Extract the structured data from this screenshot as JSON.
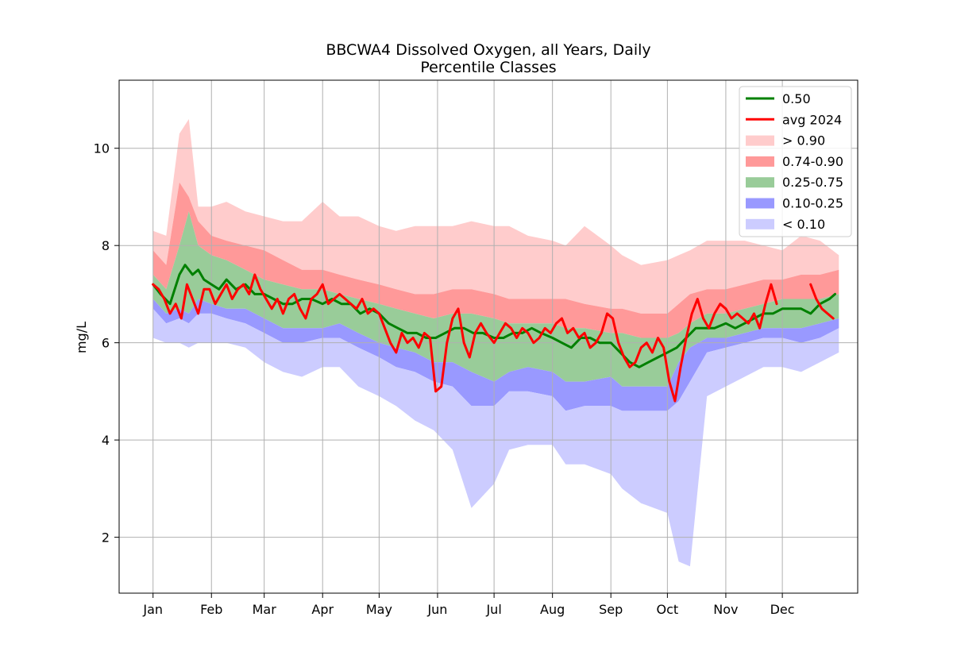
{
  "chart_data": {
    "type": "area",
    "title": "BBCWA4 Dissolved Oxygen, all Years, Daily",
    "subtitle": "Percentile Classes",
    "xlabel": "",
    "ylabel": "mg/L",
    "xlim": [
      -17,
      375
    ],
    "ylim": [
      0.85,
      11.4
    ],
    "grid": true,
    "legend_position": "top-right",
    "x_ticks": [
      {
        "label": "Jan",
        "day": 1
      },
      {
        "label": "Feb",
        "day": 32
      },
      {
        "label": "Mar",
        "day": 60
      },
      {
        "label": "Apr",
        "day": 91
      },
      {
        "label": "May",
        "day": 121
      },
      {
        "label": "Jun",
        "day": 152
      },
      {
        "label": "Jul",
        "day": 182
      },
      {
        "label": "Aug",
        "day": 213
      },
      {
        "label": "Sep",
        "day": 244
      },
      {
        "label": "Oct",
        "day": 274
      },
      {
        "label": "Nov",
        "day": 305
      },
      {
        "label": "Dec",
        "day": 335
      }
    ],
    "y_ticks": [
      2,
      4,
      6,
      8,
      10
    ],
    "colors": {
      "p50": "#008000",
      "avg": "#ff0000",
      "above_90": "#ffcccc",
      "p74_90": "#ff9999",
      "p25_75": "#99cc99",
      "p10_25": "#9999ff",
      "below_10": "#ccccff"
    },
    "days": [
      1,
      8,
      15,
      20,
      25,
      32,
      40,
      50,
      60,
      70,
      80,
      91,
      100,
      110,
      121,
      130,
      140,
      150,
      160,
      170,
      182,
      190,
      200,
      213,
      220,
      230,
      244,
      250,
      260,
      274,
      280,
      286,
      295,
      305,
      315,
      325,
      335,
      345,
      355,
      365
    ],
    "min": [
      6.1,
      6.0,
      6.0,
      5.9,
      6.0,
      6.0,
      6.0,
      5.9,
      5.6,
      5.4,
      5.3,
      5.5,
      5.5,
      5.1,
      4.9,
      4.7,
      4.4,
      4.2,
      3.8,
      2.6,
      3.1,
      3.8,
      3.9,
      3.9,
      3.5,
      3.5,
      3.3,
      3.0,
      2.7,
      2.5,
      1.5,
      1.4,
      4.9,
      5.1,
      5.3,
      5.5,
      5.5,
      5.4,
      5.6,
      5.8
    ],
    "p10": [
      6.7,
      6.4,
      6.5,
      6.4,
      6.6,
      6.6,
      6.5,
      6.4,
      6.2,
      6.0,
      6.0,
      6.1,
      6.1,
      5.9,
      5.7,
      5.5,
      5.4,
      5.2,
      5.1,
      4.7,
      4.7,
      5.0,
      5.0,
      4.9,
      4.6,
      4.7,
      4.7,
      4.6,
      4.6,
      4.6,
      4.8,
      5.2,
      5.8,
      5.9,
      6.0,
      6.1,
      6.1,
      6.0,
      6.1,
      6.3
    ],
    "p25": [
      6.9,
      6.6,
      6.7,
      6.6,
      6.9,
      6.8,
      6.7,
      6.7,
      6.5,
      6.3,
      6.3,
      6.3,
      6.4,
      6.2,
      6.0,
      5.9,
      5.8,
      5.6,
      5.6,
      5.4,
      5.2,
      5.4,
      5.5,
      5.4,
      5.2,
      5.2,
      5.3,
      5.1,
      5.1,
      5.1,
      5.6,
      5.9,
      6.1,
      6.1,
      6.2,
      6.3,
      6.3,
      6.3,
      6.4,
      6.5
    ],
    "p75": [
      7.4,
      7.1,
      8.0,
      8.7,
      8.0,
      7.8,
      7.7,
      7.5,
      7.3,
      7.2,
      7.1,
      7.1,
      7.0,
      6.9,
      6.8,
      6.7,
      6.6,
      6.5,
      6.6,
      6.6,
      6.5,
      6.4,
      6.4,
      6.4,
      6.3,
      6.3,
      6.2,
      6.2,
      6.1,
      6.1,
      6.2,
      6.4,
      6.6,
      6.6,
      6.7,
      6.8,
      6.9,
      6.9,
      6.9,
      7.0
    ],
    "p90": [
      7.9,
      7.6,
      9.3,
      9.0,
      8.5,
      8.2,
      8.1,
      8.0,
      7.9,
      7.7,
      7.5,
      7.5,
      7.4,
      7.3,
      7.2,
      7.1,
      7.0,
      7.0,
      7.1,
      7.1,
      7.0,
      6.9,
      6.9,
      6.9,
      6.9,
      6.8,
      6.7,
      6.7,
      6.6,
      6.6,
      6.8,
      7.0,
      7.1,
      7.1,
      7.2,
      7.3,
      7.3,
      7.4,
      7.4,
      7.5
    ],
    "max": [
      8.3,
      8.2,
      10.3,
      10.6,
      8.8,
      8.8,
      8.9,
      8.7,
      8.6,
      8.5,
      8.5,
      8.9,
      8.6,
      8.6,
      8.4,
      8.3,
      8.4,
      8.4,
      8.4,
      8.5,
      8.4,
      8.4,
      8.2,
      8.1,
      8.0,
      8.4,
      8.0,
      7.8,
      7.6,
      7.7,
      7.8,
      7.9,
      8.1,
      8.1,
      8.1,
      8.0,
      7.9,
      8.2,
      8.1,
      7.8
    ],
    "series": [
      {
        "name": "0.50",
        "x": [
          1,
          5,
          10,
          15,
          18,
          20,
          22,
          25,
          28,
          32,
          36,
          40,
          45,
          50,
          55,
          60,
          65,
          70,
          75,
          80,
          85,
          91,
          96,
          101,
          106,
          111,
          116,
          121,
          126,
          131,
          136,
          141,
          146,
          151,
          156,
          161,
          166,
          171,
          176,
          182,
          187,
          192,
          197,
          202,
          207,
          213,
          218,
          223,
          228,
          233,
          238,
          244,
          249,
          254,
          259,
          264,
          269,
          274,
          279,
          284,
          289,
          294,
          299,
          305,
          310,
          315,
          320,
          325,
          330,
          335,
          340,
          345,
          350,
          355,
          360,
          363
        ],
        "y": [
          7.2,
          7.0,
          6.8,
          7.4,
          7.6,
          7.5,
          7.4,
          7.5,
          7.3,
          7.2,
          7.1,
          7.3,
          7.1,
          7.2,
          7.0,
          7.0,
          6.9,
          6.8,
          6.8,
          6.9,
          6.9,
          6.8,
          6.9,
          6.8,
          6.8,
          6.6,
          6.7,
          6.6,
          6.4,
          6.3,
          6.2,
          6.2,
          6.1,
          6.1,
          6.2,
          6.3,
          6.3,
          6.2,
          6.2,
          6.1,
          6.1,
          6.2,
          6.2,
          6.3,
          6.2,
          6.1,
          6.0,
          5.9,
          6.1,
          6.1,
          6.0,
          6.0,
          5.8,
          5.6,
          5.5,
          5.6,
          5.7,
          5.8,
          5.9,
          6.1,
          6.3,
          6.3,
          6.3,
          6.4,
          6.3,
          6.4,
          6.5,
          6.6,
          6.6,
          6.7,
          6.7,
          6.7,
          6.6,
          6.8,
          6.9,
          7.0
        ]
      },
      {
        "name": "avg 2024",
        "x": [
          1,
          4,
          7,
          10,
          13,
          16,
          19,
          22,
          25,
          28,
          31,
          34,
          37,
          40,
          43,
          46,
          49,
          52,
          55,
          58,
          61,
          64,
          67,
          70,
          73,
          76,
          79,
          82,
          85,
          88,
          91,
          94,
          97,
          100,
          103,
          106,
          109,
          112,
          115,
          118,
          121,
          124,
          127,
          130,
          133,
          136,
          139,
          142,
          145,
          148,
          151,
          154,
          157,
          160,
          163,
          166,
          169,
          172,
          175,
          178,
          182,
          185,
          188,
          191,
          194,
          197,
          200,
          203,
          206,
          209,
          212,
          215,
          218,
          221,
          224,
          227,
          230,
          233,
          236,
          239,
          242,
          245,
          248,
          251,
          254,
          257,
          260,
          263,
          266,
          269,
          272,
          275,
          278,
          281,
          284,
          287,
          290,
          293,
          296,
          299,
          302,
          305,
          308,
          311,
          314,
          317,
          320,
          323,
          326,
          329,
          332,
          335,
          338,
          341,
          344,
          347,
          350,
          353,
          356,
          359,
          362
        ],
        "y": [
          7.2,
          7.1,
          6.9,
          6.6,
          6.8,
          6.5,
          7.2,
          6.9,
          6.6,
          7.1,
          7.1,
          6.8,
          7.0,
          7.2,
          6.9,
          7.1,
          7.2,
          7.0,
          7.4,
          7.1,
          6.9,
          6.7,
          6.9,
          6.6,
          6.9,
          7.0,
          6.7,
          6.5,
          6.9,
          7.0,
          7.2,
          6.8,
          6.9,
          7.0,
          6.9,
          6.8,
          6.7,
          6.9,
          6.6,
          6.7,
          6.6,
          6.3,
          6.0,
          5.8,
          6.2,
          6.0,
          6.1,
          5.9,
          6.2,
          6.1,
          5.0,
          5.1,
          6.0,
          6.5,
          6.7,
          6.0,
          5.7,
          6.2,
          6.4,
          6.2,
          6.0,
          6.2,
          6.4,
          6.3,
          6.1,
          6.3,
          6.2,
          6.0,
          6.1,
          6.3,
          6.2,
          6.4,
          6.5,
          6.2,
          6.3,
          6.1,
          6.2,
          5.9,
          6.0,
          6.2,
          6.6,
          6.5,
          6.0,
          5.7,
          5.5,
          5.6,
          5.9,
          6.0,
          5.8,
          6.1,
          5.9,
          5.2,
          4.8,
          5.5,
          6.1,
          6.6,
          6.9,
          6.5,
          6.3,
          6.6,
          6.8,
          6.7,
          6.5,
          6.6,
          6.5,
          6.4,
          6.6,
          6.3,
          6.8,
          7.2,
          6.8,
          null,
          null,
          null,
          null,
          null,
          7.2,
          6.9,
          6.7,
          6.6,
          6.5
        ]
      }
    ],
    "legend": [
      {
        "label": "0.50",
        "kind": "line",
        "color": "#008000"
      },
      {
        "label": "avg 2024",
        "kind": "line",
        "color": "#ff0000"
      },
      {
        "label": "> 0.90",
        "kind": "patch",
        "color": "#ffcccc"
      },
      {
        "label": "0.74-0.90",
        "kind": "patch",
        "color": "#ff9999"
      },
      {
        "label": "0.25-0.75",
        "kind": "patch",
        "color": "#99cc99"
      },
      {
        "label": "0.10-0.25",
        "kind": "patch",
        "color": "#9999ff"
      },
      {
        "label": "< 0.10",
        "kind": "patch",
        "color": "#ccccff"
      }
    ]
  }
}
